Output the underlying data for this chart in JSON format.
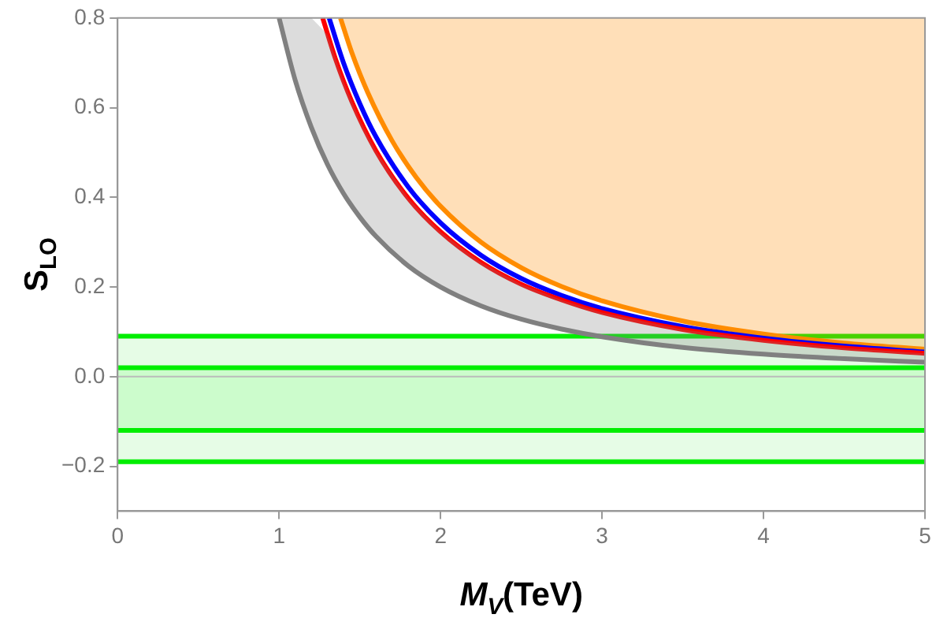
{
  "chart_data": {
    "type": "line",
    "xlabel": "M$_{V}$(TeV)",
    "ylabel": "S$_{LO}$",
    "xlim": [
      0,
      5
    ],
    "xticks": [
      0,
      1,
      2,
      3,
      4,
      5
    ],
    "ylim": [
      -0.3,
      0.8
    ],
    "yticks": [
      -0.2,
      {
        "value": 0,
        "label": "0.0"
      },
      0.2,
      0.4,
      0.6,
      0.8
    ],
    "grid": false,
    "legend": false,
    "marker": "none",
    "line_style": "solid",
    "series": [
      {
        "type": "line",
        "color": "#808080",
        "x": [
          1.0,
          1.1,
          1.2,
          1.3,
          1.4,
          1.5,
          1.6,
          1.8,
          2,
          2.25,
          2.5,
          2.75,
          3,
          3.5,
          4,
          4.5,
          5
        ],
        "values": [
          0.8,
          0.661,
          0.556,
          0.473,
          0.408,
          0.356,
          0.313,
          0.247,
          0.2,
          0.158,
          0.128,
          0.106,
          0.089,
          0.065,
          0.05,
          0.04,
          0.032
        ],
        "lower": [
          0.8,
          0.661,
          0.556,
          0.473,
          0.408,
          0.356,
          0.313,
          0.247,
          0.2,
          0.158,
          0.128,
          0.106,
          0.089,
          0.065,
          0.05,
          0.04,
          0.032
        ],
        "upper": [
          0.8,
          0.8,
          0.8,
          0.763,
          0.658,
          0.573,
          0.504,
          0.398,
          0.323,
          0.255,
          0.206,
          0.171,
          0.143,
          0.105,
          0.081,
          0.064,
          0.052
        ]
      },
      {
        "type": "line",
        "color": "#ff0000",
        "x": [
          1.27,
          1.35,
          1.45,
          1.6,
          1.8,
          2,
          2.25,
          2.5,
          2.75,
          3,
          3.5,
          4,
          4.5,
          5
        ],
        "values": [
          0.8,
          0.708,
          0.614,
          0.504,
          0.398,
          0.323,
          0.255,
          0.206,
          0.171,
          0.143,
          0.105,
          0.081,
          0.064,
          0.052
        ]
      },
      {
        "type": "line",
        "color": "#0000ff",
        "x": [
          1.31,
          1.4,
          1.5,
          1.6,
          1.8,
          2,
          2.25,
          2.5,
          2.75,
          3,
          3.5,
          4,
          4.5,
          5
        ],
        "values": [
          0.8,
          0.699,
          0.609,
          0.535,
          0.423,
          0.343,
          0.271,
          0.219,
          0.181,
          0.152,
          0.112,
          0.086,
          0.068,
          0.055
        ]
      },
      {
        "type": "line",
        "color": "#ff8c00",
        "x": [
          1.38,
          1.45,
          1.55,
          1.7,
          1.85,
          2,
          2.25,
          2.5,
          2.75,
          3,
          3.5,
          4,
          4.5,
          5
        ],
        "values": [
          0.8,
          0.723,
          0.633,
          0.526,
          0.444,
          0.38,
          0.3,
          0.243,
          0.201,
          0.169,
          0.124,
          0.095,
          0.075,
          0.061
        ],
        "lower": [
          0.8,
          0.723,
          0.633,
          0.526,
          0.444,
          0.38,
          0.3,
          0.243,
          0.201,
          0.169,
          0.124,
          0.095,
          0.075,
          0.061
        ],
        "upper": [
          0.8,
          0.8,
          0.8,
          0.8,
          0.8,
          0.8,
          0.8,
          0.8,
          0.8,
          0.8,
          0.8,
          0.8,
          0.8,
          0.8
        ]
      }
    ],
    "bands": [
      {
        "axis": "y",
        "from": -0.19,
        "to": 0.09,
        "color": "#e6fce6"
      },
      {
        "axis": "y",
        "from": -0.12,
        "to": 0.02,
        "color": "#ccfccc"
      }
    ],
    "ref_lines": [
      {
        "axis": "y",
        "value": 0,
        "color": "#bbbbbb"
      },
      {
        "axis": "y",
        "value": 0.09,
        "color": "#00ee00"
      },
      {
        "axis": "y",
        "value": 0.02,
        "color": "#00ee00"
      },
      {
        "axis": "y",
        "value": -0.12,
        "color": "#00ee00"
      },
      {
        "axis": "y",
        "value": -0.19,
        "color": "#00ee00"
      }
    ]
  }
}
